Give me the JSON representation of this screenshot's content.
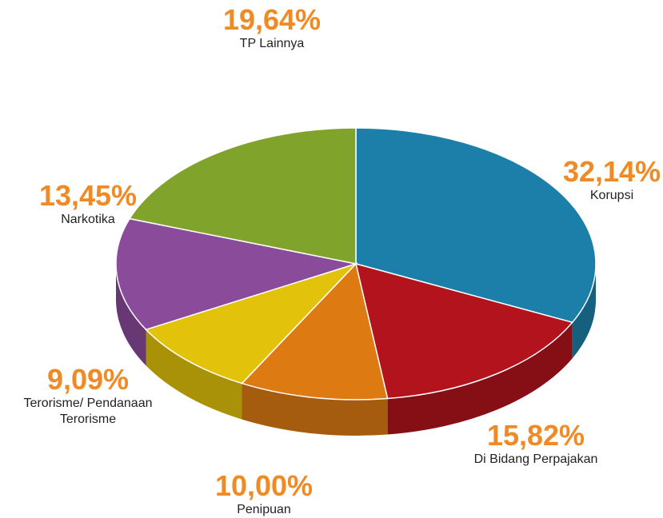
{
  "chart_data": {
    "type": "pie",
    "categories": [
      "Korupsi",
      "Di Bidang Perpajakan",
      "Penipuan",
      "Terorisme/ Pendanaan Terorisme",
      "Narkotika",
      "TP Lainnya"
    ],
    "values": [
      32.14,
      15.82,
      10.0,
      9.09,
      13.45,
      19.64
    ],
    "value_labels": [
      "32,14%",
      "15,82%",
      "10,00%",
      "9,09%",
      "13,45%",
      "19,64%"
    ],
    "colors": [
      "#1c7fa9",
      "#b3131c",
      "#dd7a12",
      "#e3c20b",
      "#8b4b9b",
      "#80a42b"
    ]
  }
}
